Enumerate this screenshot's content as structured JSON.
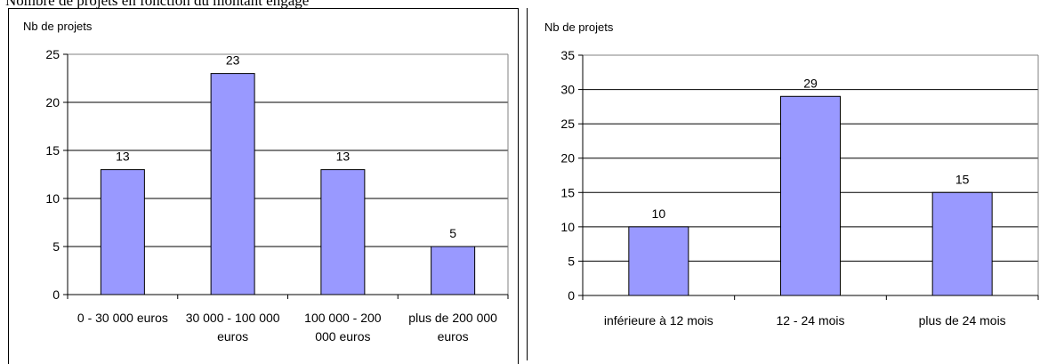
{
  "caption": "Nombre de projets en fonction du montant engagé",
  "chart_data": [
    {
      "type": "bar",
      "ylabel": "Nb de projets",
      "categories": [
        [
          "0 - 30 000 euros"
        ],
        [
          "30 000 - 100 000",
          "euros"
        ],
        [
          "100 000 - 200",
          "000 euros"
        ],
        [
          "plus de 200 000",
          "euros"
        ]
      ],
      "values": [
        13,
        23,
        13,
        5
      ],
      "yticks": [
        "0",
        "5",
        "10",
        "15",
        "20",
        "25"
      ],
      "ylim": [
        0,
        25
      ],
      "grid": true,
      "bar_color": "#9999ff"
    },
    {
      "type": "bar",
      "ylabel": "Nb de projets",
      "categories": [
        [
          "inférieure à 12 mois"
        ],
        [
          "12 - 24 mois"
        ],
        [
          "plus de 24 mois"
        ]
      ],
      "values": [
        10,
        29,
        15
      ],
      "yticks": [
        "0",
        "5",
        "10",
        "15",
        "20",
        "25",
        "30",
        "35"
      ],
      "ylim": [
        0,
        35
      ],
      "grid": true,
      "bar_color": "#9999ff"
    }
  ]
}
